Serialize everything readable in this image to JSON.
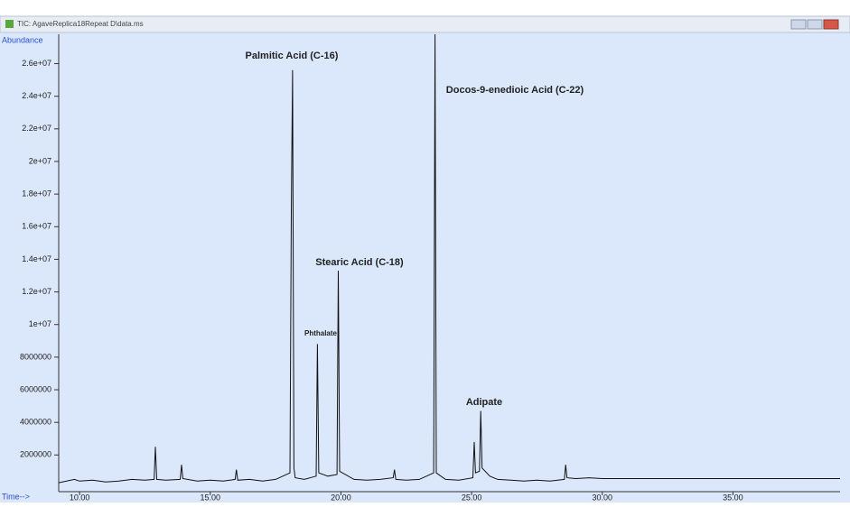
{
  "window": {
    "title": "TIC: AgaveReplica18Repeat D\\data.ms"
  },
  "chart_data": {
    "type": "line",
    "y_label": "Abundance",
    "x_label": "Time-->",
    "color": "#111111",
    "x": [
      9.2,
      9.8,
      10.0,
      10.5,
      11.0,
      11.5,
      12.0,
      12.5,
      12.85,
      12.9,
      12.95,
      13.3,
      13.85,
      13.9,
      13.95,
      14.5,
      15.0,
      15.5,
      15.95,
      16.0,
      16.05,
      16.5,
      17.0,
      17.5,
      18.05,
      18.1,
      18.15,
      18.2,
      18.25,
      18.6,
      19.05,
      19.1,
      19.15,
      19.5,
      19.85,
      19.9,
      19.95,
      20.5,
      21.0,
      21.5,
      22.0,
      22.05,
      22.1,
      22.5,
      23.0,
      23.55,
      23.6,
      23.65,
      24.0,
      24.5,
      25.05,
      25.1,
      25.15,
      25.3,
      25.35,
      25.4,
      25.7,
      26.0,
      26.5,
      27.0,
      27.5,
      28.0,
      28.55,
      28.6,
      28.65,
      29.0,
      29.5,
      30.0,
      32.0,
      34.0,
      36.0,
      38.0,
      39.1
    ],
    "values": [
      300000,
      500000,
      400000,
      450000,
      350000,
      400000,
      500000,
      450000,
      500000,
      2500000,
      500000,
      450000,
      500000,
      1400000,
      550000,
      400000,
      450000,
      400000,
      500000,
      1100000,
      450000,
      500000,
      400000,
      500000,
      900000,
      16900000,
      25600000,
      1200000,
      600000,
      500000,
      700000,
      8800000,
      900000,
      700000,
      800000,
      13300000,
      1000000,
      500000,
      450000,
      500000,
      600000,
      1100000,
      500000,
      450000,
      500000,
      900000,
      27800000,
      900000,
      500000,
      450000,
      600000,
      2800000,
      900000,
      1000000,
      4700000,
      1200000,
      700000,
      500000,
      450000,
      400000,
      450000,
      400000,
      500000,
      1400000,
      600000,
      550000,
      600000,
      550000,
      550000,
      550000,
      550000,
      550000,
      550000
    ],
    "xlim": [
      9.2,
      39.1
    ],
    "ylim": [
      -250000,
      27800000
    ],
    "xticks": [
      {
        "value": 10,
        "label": "10.00"
      },
      {
        "value": 15,
        "label": "15.00"
      },
      {
        "value": 20,
        "label": "20.00"
      },
      {
        "value": 25,
        "label": "25.00"
      },
      {
        "value": 30,
        "label": "30.00"
      },
      {
        "value": 35,
        "label": "35.00"
      }
    ],
    "yticks": [
      2000000,
      4000000,
      6000000,
      8000000,
      {
        "value": 10000000,
        "label": "1e+07"
      },
      {
        "value": 12000000,
        "label": "1.2e+07"
      },
      {
        "value": 14000000,
        "label": "1.4e+07"
      },
      {
        "value": 16000000,
        "label": "1.6e+07"
      },
      {
        "value": 18000000,
        "label": "1.8e+07"
      },
      {
        "value": 20000000,
        "label": "2e+07"
      },
      {
        "value": 22000000,
        "label": "2.2e+07"
      },
      {
        "value": 24000000,
        "label": "2.4e+07"
      },
      {
        "value": 26000000,
        "label": "2.6e+07"
      }
    ],
    "annotations": [
      "Palmitic Acid (C-16)",
      "Phthalate",
      "Stearic Acid (C-18)",
      "Docos-9-enedioic Acid (C-22)",
      "Adipate"
    ]
  }
}
